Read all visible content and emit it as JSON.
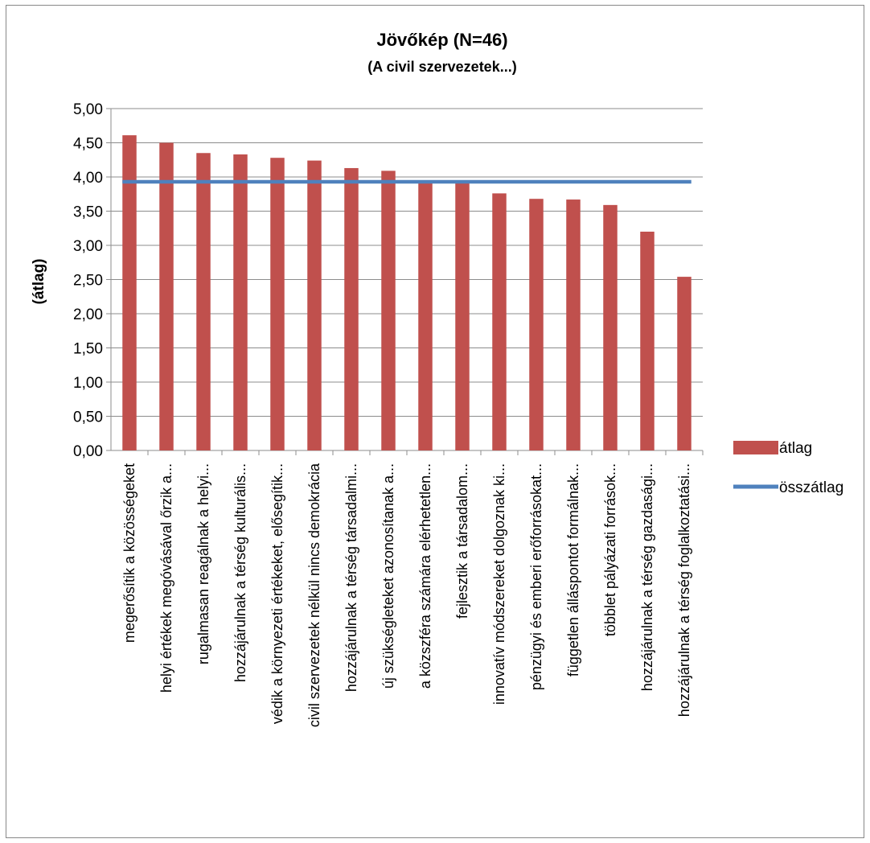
{
  "chart_data": {
    "type": "bar",
    "title": "Jövőkép (N=46)",
    "subtitle": "(A civil szervezetek...)",
    "xlabel": "",
    "ylabel": "(átlag)",
    "ylim": [
      0,
      5
    ],
    "y_ticks": [
      "0,00",
      "0,50",
      "1,00",
      "1,50",
      "2,00",
      "2,50",
      "3,00",
      "3,50",
      "4,00",
      "4,50",
      "5,00"
    ],
    "grid": true,
    "legend_position": "right",
    "categories": [
      "megerősítik a közösségeket",
      "helyi értékek megóvásával őrzik a...",
      "rugalmasan reagálnak a helyi...",
      "hozzájárulnak a térség kulturális...",
      "védik a környezeti értékeket, elősegítik...",
      "civil szervezetek nélkül nincs demokrácia",
      "hozzájárulnak a térség társadalmi...",
      "új szükségleteket azonosítanak a...",
      "a közszféra számára elérhetetlen...",
      "fejlesztik a társadalom...",
      "innovatív módszereket dolgoznak ki...",
      "pénzügyi és emberi erőforrásokat...",
      "független álláspontot formálnak...",
      "többlet pályázati források...",
      "hozzájárulnak a térség gazdasági...",
      "hozzájárulnak a térség foglalkoztatási..."
    ],
    "series": [
      {
        "name": "átlag",
        "type": "bar",
        "color": "#C0504D",
        "values": [
          4.61,
          4.5,
          4.35,
          4.33,
          4.28,
          4.24,
          4.13,
          4.09,
          3.93,
          3.91,
          3.76,
          3.68,
          3.67,
          3.59,
          3.2,
          2.54
        ]
      },
      {
        "name": "összátlag",
        "type": "line",
        "color": "#4F81BD",
        "value": 3.93
      }
    ]
  }
}
